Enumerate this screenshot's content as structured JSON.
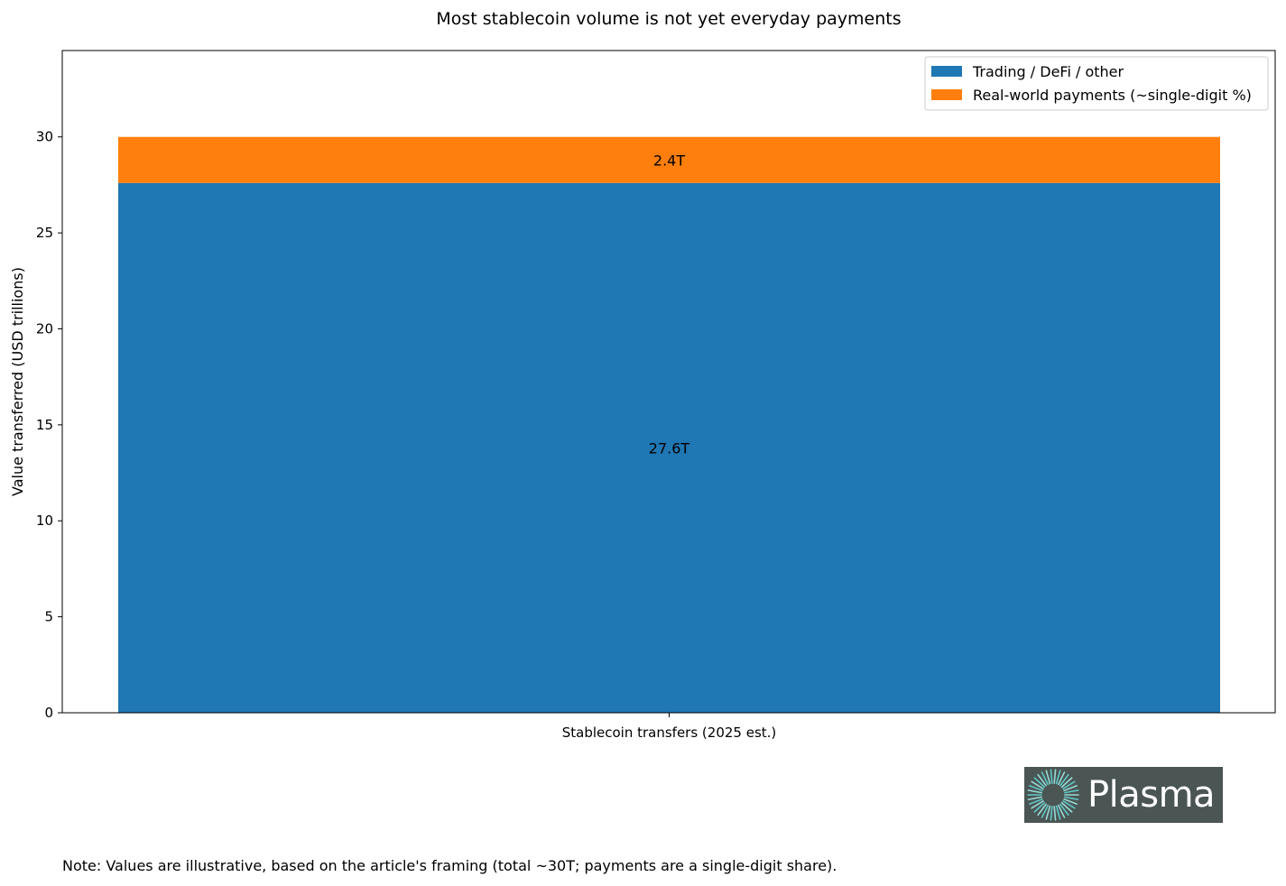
{
  "chart_data": {
    "type": "bar",
    "stacked": true,
    "title": "Most stablecoin volume is not yet everyday payments",
    "xlabel": "",
    "ylabel": "Value transferred (USD trillions)",
    "categories": [
      "Stablecoin transfers (2025 est.)"
    ],
    "series": [
      {
        "name": "Trading / DeFi / other",
        "values": [
          27.6
        ],
        "color": "#1f77b4",
        "data_labels": [
          "27.6T"
        ]
      },
      {
        "name": "Real-world payments (~single-digit %)",
        "values": [
          2.4
        ],
        "color": "#ff7f0e",
        "data_labels": [
          "2.4T"
        ]
      }
    ],
    "yticks": [
      "0",
      "5",
      "10",
      "15",
      "20",
      "25",
      "30"
    ],
    "ylim": [
      0,
      34.5
    ],
    "grid": false,
    "legend_position": "top-right"
  },
  "logo": {
    "text": "Plasma"
  },
  "note": "Note: Values are illustrative, based on the article's framing (total ~30T; payments are a single-digit share)."
}
